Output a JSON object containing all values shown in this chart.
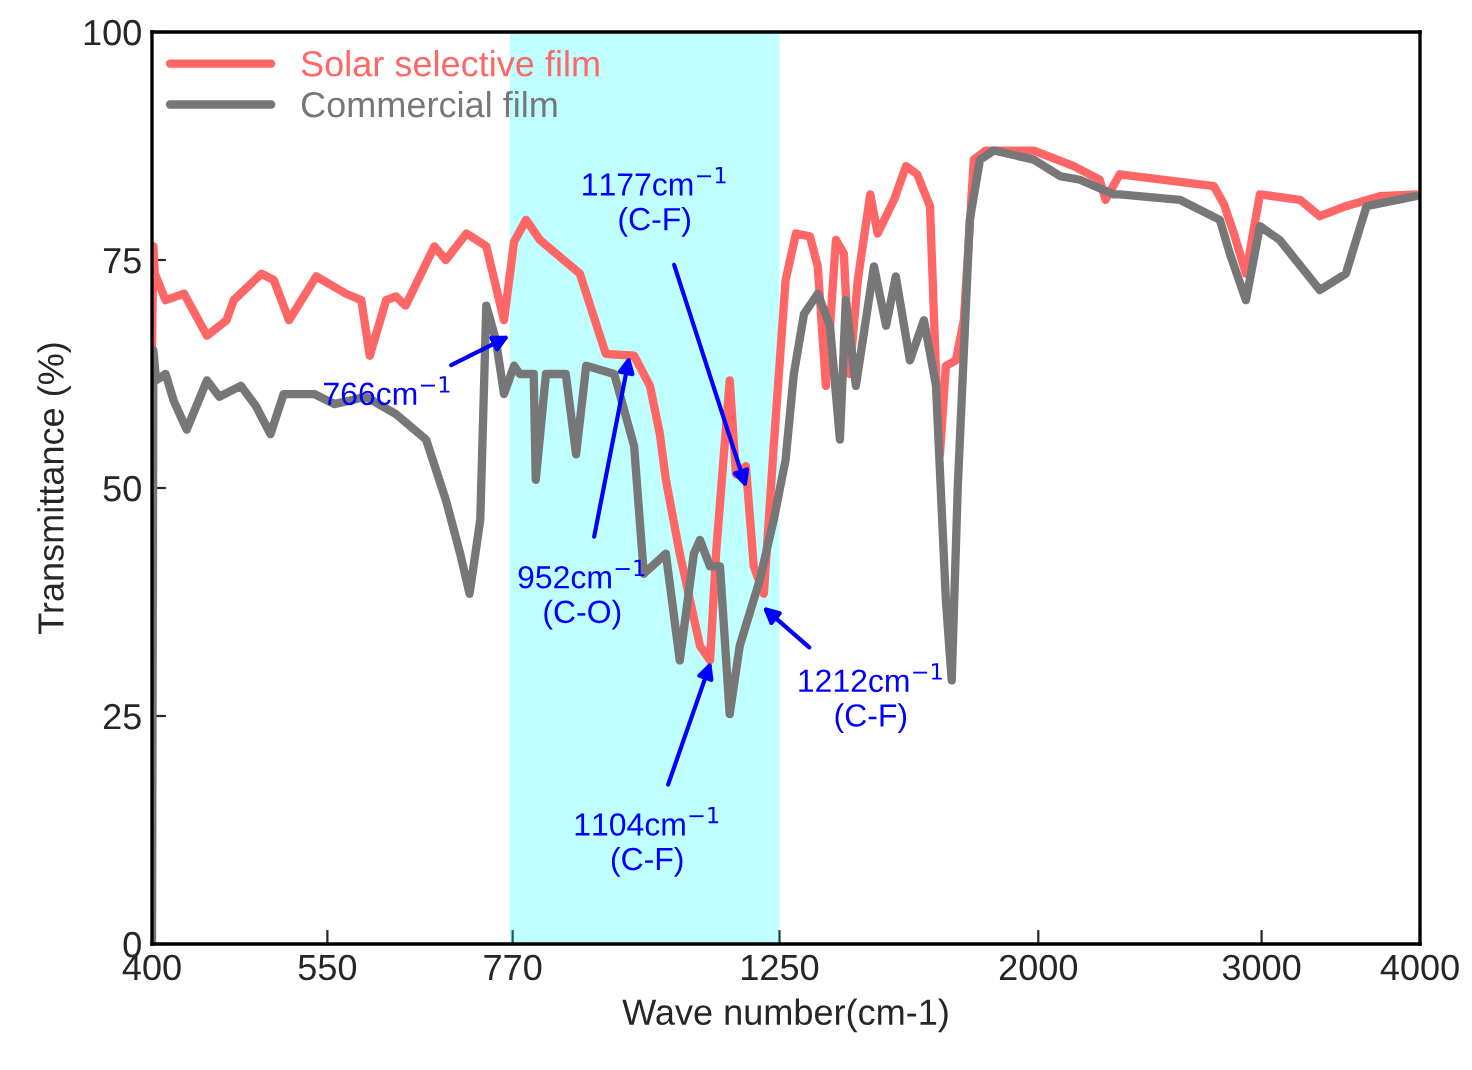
{
  "chart_data": {
    "type": "line",
    "xlabel": "Wave number(cm-1)",
    "ylabel": "Transmittance (%)",
    "xlim": [
      400,
      4000
    ],
    "xticks": [
      400,
      550,
      770,
      1250,
      2000,
      3000,
      4000
    ],
    "ylim": [
      0,
      100
    ],
    "yticks": [
      0,
      25,
      50,
      75,
      100
    ],
    "log": "x",
    "grid": false,
    "legend": "top left",
    "marker": "none",
    "line_style": "solid",
    "series": [
      {
        "name": "Solar selective film",
        "color": "#ff6666",
        "x": [
          400,
          401,
          402,
          410,
          424,
          442,
          458,
          464,
          488,
          499,
          513,
          539,
          569,
          585,
          594,
          612,
          623,
          634,
          668,
          682,
          708,
          734,
          758,
          772,
          789,
          809,
          870,
          912,
          960,
          988,
          1006,
          1017,
          1043,
          1082,
          1102,
          1114,
          1142,
          1155,
          1176,
          1193,
          1215,
          1237,
          1264,
          1288,
          1321,
          1340,
          1360,
          1385,
          1405,
          1420,
          1441,
          1474,
          1494,
          1539,
          1573,
          1605,
          1643,
          1661,
          1673,
          1691,
          1722,
          1747,
          1779,
          1818,
          1984,
          2133,
          2236,
          2260,
          2319,
          2751,
          2802,
          2853,
          2916,
          2991,
          3216,
          3335,
          3496,
          3719,
          3970
        ],
        "values": [
          65.6,
          76.5,
          73.5,
          70.6,
          71.3,
          66.7,
          68.4,
          70.6,
          73.5,
          72.8,
          68.4,
          73.2,
          71.3,
          70.6,
          64.5,
          70.6,
          71,
          70,
          76.5,
          75,
          77.9,
          76.5,
          68.4,
          77,
          79.4,
          77.2,
          73.5,
          64.7,
          64.5,
          61.2,
          55.9,
          50.9,
          42.8,
          32.7,
          31.1,
          42.8,
          61.8,
          51.5,
          52.4,
          41.4,
          38.4,
          54.6,
          72.8,
          77.9,
          77.6,
          74.3,
          61.2,
          77.2,
          75.7,
          62.5,
          72.8,
          82.2,
          77.9,
          81.6,
          85.3,
          84.4,
          80.9,
          62.5,
          53.7,
          63.4,
          64,
          68.4,
          86,
          87,
          87,
          85.3,
          83.8,
          81.6,
          84.4,
          83.1,
          81.1,
          77.9,
          73.5,
          82.2,
          81.6,
          79.8,
          80.9,
          82,
          82.2
        ]
      },
      {
        "name": "Commercial film",
        "color": "#777777",
        "x": [
          400,
          401,
          403,
          410,
          416,
          426,
          442,
          452,
          470,
          483,
          496,
          508,
          537,
          557,
          590,
          623,
          658,
          682,
          700,
          712,
          726,
          734,
          747,
          758,
          772,
          780,
          800,
          803,
          818,
          848,
          864,
          880,
          926,
          960,
          977,
          1017,
          1043,
          1070,
          1082,
          1102,
          1122,
          1142,
          1163,
          1206,
          1237,
          1264,
          1283,
          1307,
          1340,
          1370,
          1395,
          1410,
          1436,
          1484,
          1517,
          1544,
          1584,
          1625,
          1661,
          1691,
          1709,
          1728,
          1766,
          1799,
          1845,
          1984,
          2080,
          2157,
          2294,
          2319,
          2586,
          2781,
          2832,
          2916,
          2991,
          3100,
          3335,
          3496,
          3630,
          3970
        ],
        "values": [
          0,
          65.1,
          61.8,
          62.5,
          59.6,
          56.4,
          61.8,
          60,
          61.2,
          59,
          55.9,
          60.3,
          60.3,
          59.2,
          60,
          58.1,
          55.3,
          48.7,
          42.8,
          38.4,
          46.5,
          70,
          66.2,
          60.3,
          63.4,
          62.5,
          62.5,
          50.9,
          62.5,
          62.5,
          53.7,
          63.4,
          62.5,
          54.6,
          40.6,
          42.8,
          31.1,
          42.8,
          44.3,
          41.4,
          41.4,
          25.2,
          32.7,
          39.9,
          46.5,
          53.1,
          62.5,
          69.1,
          71.3,
          67.8,
          55.3,
          70.6,
          61.2,
          74.3,
          67.8,
          73.2,
          64,
          68.4,
          61.2,
          37.7,
          28.9,
          50.2,
          79.4,
          86,
          87,
          86,
          84.2,
          83.8,
          82.2,
          82.2,
          81.6,
          79.4,
          75.7,
          70.6,
          78.7,
          77.2,
          71.7,
          73.5,
          80.9,
          82
        ]
      }
    ],
    "bands": [
      {
        "axis": "x",
        "from": 766,
        "to": 1250,
        "color": "#00ffff"
      }
    ],
    "annotations": [
      {
        "text": "766cm$^{−1}$",
        "x": 766,
        "y": 66.7
      },
      {
        "text": "952cm$^{−1}$\n(C-O)",
        "x": 952,
        "y": 64.5
      },
      {
        "text": "1104cm$^{−1}$\n(C-F)",
        "x": 1104,
        "y": 31
      },
      {
        "text": "1177cm$^{−1}$\n(C-F)",
        "x": 1177,
        "y": 50
      },
      {
        "text": "1212cm$^{−1}$\n(C-F)",
        "x": 1212,
        "y": 37
      }
    ]
  }
}
